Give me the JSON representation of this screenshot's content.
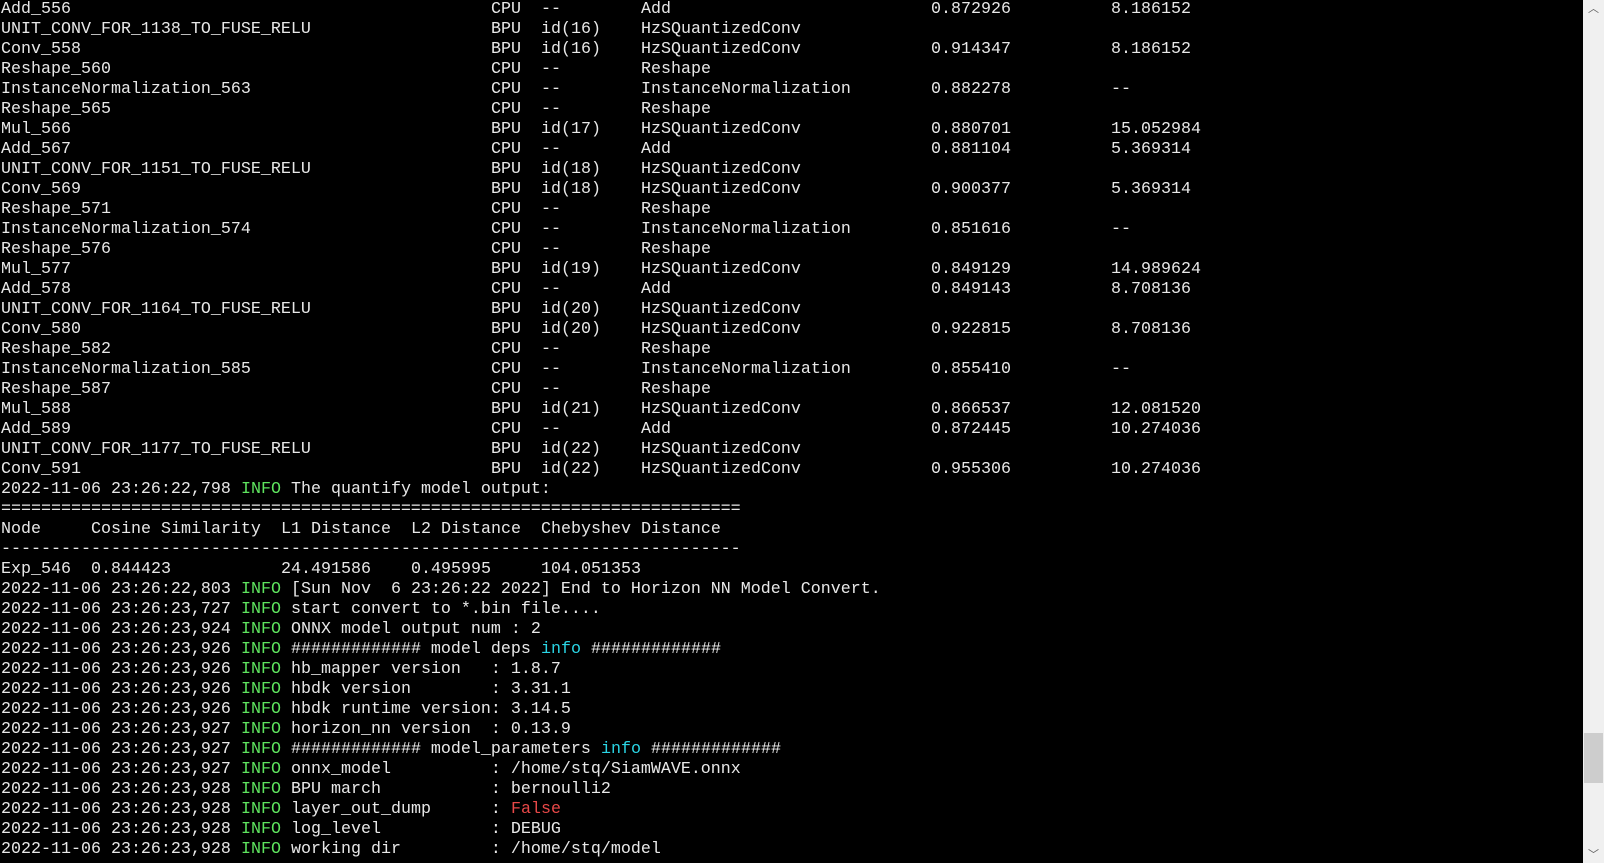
{
  "colors": {
    "background": "#000000",
    "text": "#e8e8e8",
    "info_level": "#5ee35e",
    "info_word": "#2ad4e4",
    "false_value": "#e84848"
  },
  "layer_rows": [
    [
      "Add_556",
      "CPU",
      "--",
      "Add",
      "0.872926",
      "8.186152"
    ],
    [
      "UNIT_CONV_FOR_1138_TO_FUSE_RELU",
      "BPU",
      "id(16)",
      "HzSQuantizedConv",
      "",
      ""
    ],
    [
      "Conv_558",
      "BPU",
      "id(16)",
      "HzSQuantizedConv",
      "0.914347",
      "8.186152"
    ],
    [
      "Reshape_560",
      "CPU",
      "--",
      "Reshape",
      "",
      ""
    ],
    [
      "InstanceNormalization_563",
      "CPU",
      "--",
      "InstanceNormalization",
      "0.882278",
      "--"
    ],
    [
      "Reshape_565",
      "CPU",
      "--",
      "Reshape",
      "",
      ""
    ],
    [
      "Mul_566",
      "BPU",
      "id(17)",
      "HzSQuantizedConv",
      "0.880701",
      "15.052984"
    ],
    [
      "Add_567",
      "CPU",
      "--",
      "Add",
      "0.881104",
      "5.369314"
    ],
    [
      "UNIT_CONV_FOR_1151_TO_FUSE_RELU",
      "BPU",
      "id(18)",
      "HzSQuantizedConv",
      "",
      ""
    ],
    [
      "Conv_569",
      "BPU",
      "id(18)",
      "HzSQuantizedConv",
      "0.900377",
      "5.369314"
    ],
    [
      "Reshape_571",
      "CPU",
      "--",
      "Reshape",
      "",
      ""
    ],
    [
      "InstanceNormalization_574",
      "CPU",
      "--",
      "InstanceNormalization",
      "0.851616",
      "--"
    ],
    [
      "Reshape_576",
      "CPU",
      "--",
      "Reshape",
      "",
      ""
    ],
    [
      "Mul_577",
      "BPU",
      "id(19)",
      "HzSQuantizedConv",
      "0.849129",
      "14.989624"
    ],
    [
      "Add_578",
      "CPU",
      "--",
      "Add",
      "0.849143",
      "8.708136"
    ],
    [
      "UNIT_CONV_FOR_1164_TO_FUSE_RELU",
      "BPU",
      "id(20)",
      "HzSQuantizedConv",
      "",
      ""
    ],
    [
      "Conv_580",
      "BPU",
      "id(20)",
      "HzSQuantizedConv",
      "0.922815",
      "8.708136"
    ],
    [
      "Reshape_582",
      "CPU",
      "--",
      "Reshape",
      "",
      ""
    ],
    [
      "InstanceNormalization_585",
      "CPU",
      "--",
      "InstanceNormalization",
      "0.855410",
      "--"
    ],
    [
      "Reshape_587",
      "CPU",
      "--",
      "Reshape",
      "",
      ""
    ],
    [
      "Mul_588",
      "BPU",
      "id(21)",
      "HzSQuantizedConv",
      "0.866537",
      "12.081520"
    ],
    [
      "Add_589",
      "CPU",
      "--",
      "Add",
      "0.872445",
      "10.274036"
    ],
    [
      "UNIT_CONV_FOR_1177_TO_FUSE_RELU",
      "BPU",
      "id(22)",
      "HzSQuantizedConv",
      "",
      ""
    ],
    [
      "Conv_591",
      "BPU",
      "id(22)",
      "HzSQuantizedConv",
      "0.955306",
      "10.274036"
    ]
  ],
  "log_quantify": {
    "ts": "2022-11-06 23:26:22,798",
    "level": "INFO",
    "msg": "The quantify model output:"
  },
  "summary": {
    "rule_eq": "==========================================================================",
    "headers": [
      "Node",
      "Cosine Similarity",
      "L1 Distance",
      "L2 Distance",
      "Chebyshev Distance"
    ],
    "rule_dash": "--------------------------------------------------------------------------",
    "row": [
      "Exp_546",
      "0.844423",
      "24.491586",
      "0.495995",
      "104.051353"
    ]
  },
  "logs": [
    {
      "ts": "2022-11-06 23:26:22,803",
      "level": "INFO",
      "parts": [
        {
          "t": "[Sun Nov  6 23:26:22 2022] End to Horizon NN Model Convert."
        }
      ]
    },
    {
      "ts": "2022-11-06 23:26:23,727",
      "level": "INFO",
      "parts": [
        {
          "t": "start convert to *.bin file...."
        }
      ]
    },
    {
      "ts": "2022-11-06 23:26:23,924",
      "level": "INFO",
      "parts": [
        {
          "t": "ONNX model output num : 2"
        }
      ]
    },
    {
      "ts": "2022-11-06 23:26:23,926",
      "level": "INFO",
      "parts": [
        {
          "t": "############# model deps "
        },
        {
          "t": "info",
          "c": "cyan"
        },
        {
          "t": " #############"
        }
      ]
    },
    {
      "ts": "2022-11-06 23:26:23,926",
      "level": "INFO",
      "parts": [
        {
          "t": "hb_mapper version   : 1.8.7"
        }
      ]
    },
    {
      "ts": "2022-11-06 23:26:23,926",
      "level": "INFO",
      "parts": [
        {
          "t": "hbdk version        : 3.31.1"
        }
      ]
    },
    {
      "ts": "2022-11-06 23:26:23,926",
      "level": "INFO",
      "parts": [
        {
          "t": "hbdk runtime version: 3.14.5"
        }
      ]
    },
    {
      "ts": "2022-11-06 23:26:23,927",
      "level": "INFO",
      "parts": [
        {
          "t": "horizon_nn version  : 0.13.9"
        }
      ]
    },
    {
      "ts": "2022-11-06 23:26:23,927",
      "level": "INFO",
      "parts": [
        {
          "t": "############# model_parameters "
        },
        {
          "t": "info",
          "c": "cyan"
        },
        {
          "t": " #############"
        }
      ]
    },
    {
      "ts": "2022-11-06 23:26:23,927",
      "level": "INFO",
      "parts": [
        {
          "t": "onnx_model          : /home/stq/SiamWAVE.onnx"
        }
      ]
    },
    {
      "ts": "2022-11-06 23:26:23,928",
      "level": "INFO",
      "parts": [
        {
          "t": "BPU march           : bernoulli2"
        }
      ]
    },
    {
      "ts": "2022-11-06 23:26:23,928",
      "level": "INFO",
      "parts": [
        {
          "t": "layer_out_dump      : "
        },
        {
          "t": "False",
          "c": "red"
        }
      ]
    },
    {
      "ts": "2022-11-06 23:26:23,928",
      "level": "INFO",
      "parts": [
        {
          "t": "log_level           : DEBUG"
        }
      ]
    },
    {
      "ts": "2022-11-06 23:26:23,928",
      "level": "INFO",
      "parts": [
        {
          "t": "working dir         : /home/stq/model"
        }
      ]
    }
  ],
  "scrollbar": {
    "up_icon": "▲",
    "down_icon": "▼",
    "position_fraction": 0.93
  }
}
